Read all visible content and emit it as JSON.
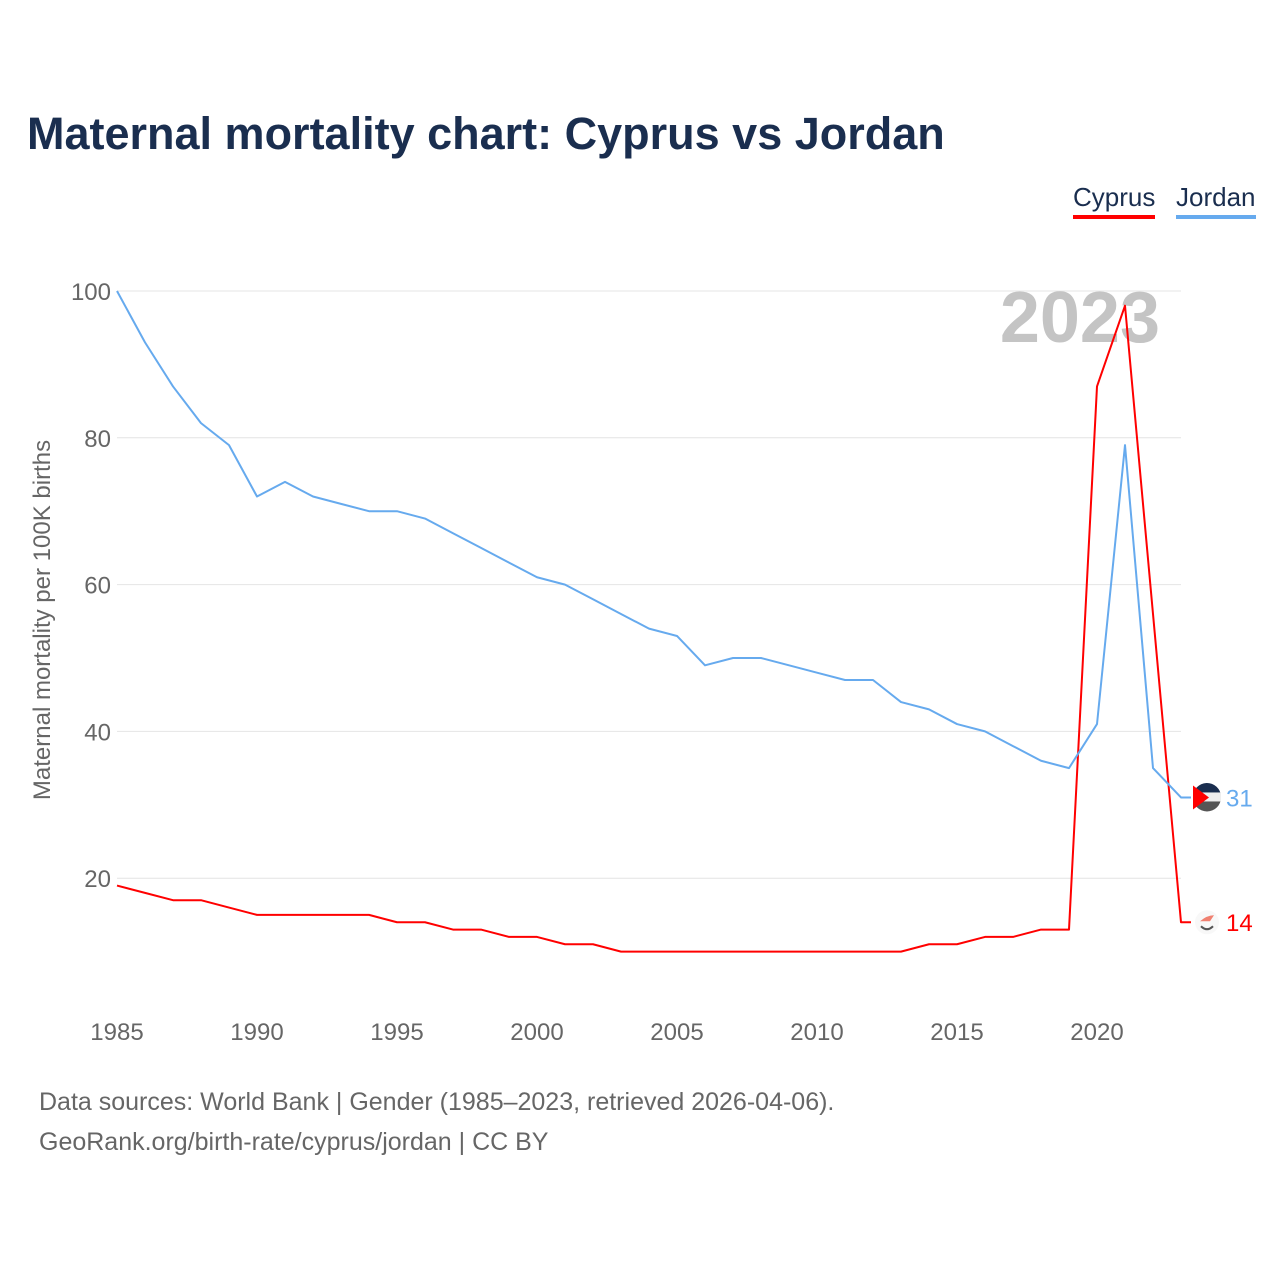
{
  "chart_data": {
    "type": "line",
    "title": "Maternal mortality chart: Cyprus vs Jordan",
    "ylabel": "Maternal mortality per 100K births",
    "xlabel": "",
    "ylim": [
      0,
      100
    ],
    "xlim": [
      1985,
      2023
    ],
    "yticks": [
      20,
      40,
      60,
      80,
      100
    ],
    "xticks": [
      1985,
      1990,
      1995,
      2000,
      2005,
      2010,
      2015,
      2020
    ],
    "grid": true,
    "legend_position": "top-right",
    "year_label": "2023",
    "x": [
      1985,
      1986,
      1987,
      1988,
      1989,
      1990,
      1991,
      1992,
      1993,
      1994,
      1995,
      1996,
      1997,
      1998,
      1999,
      2000,
      2001,
      2002,
      2003,
      2004,
      2005,
      2006,
      2007,
      2008,
      2009,
      2010,
      2011,
      2012,
      2013,
      2014,
      2015,
      2016,
      2017,
      2018,
      2019,
      2020,
      2021,
      2022,
      2023
    ],
    "series": [
      {
        "name": "Cyprus",
        "color": "#ff0000",
        "end_label": "14",
        "values": [
          19,
          18,
          17,
          17,
          16,
          15,
          15,
          15,
          15,
          15,
          14,
          14,
          13,
          13,
          12,
          12,
          11,
          11,
          10,
          10,
          10,
          10,
          10,
          10,
          10,
          10,
          10,
          10,
          10,
          11,
          11,
          12,
          12,
          13,
          13,
          87,
          98,
          56,
          14
        ]
      },
      {
        "name": "Jordan",
        "color": "#66aaee",
        "end_label": "31",
        "values": [
          100,
          93,
          87,
          82,
          79,
          72,
          74,
          72,
          71,
          70,
          70,
          69,
          67,
          65,
          63,
          61,
          60,
          58,
          56,
          54,
          53,
          49,
          50,
          50,
          49,
          48,
          47,
          47,
          44,
          43,
          41,
          40,
          38,
          36,
          35,
          41,
          79,
          35,
          31
        ]
      }
    ]
  },
  "footer": {
    "line1": "Data sources: World Bank | Gender (1985–2023, retrieved 2026-04-06).",
    "line2": "GeoRank.org/birth-rate/cyprus/jordan | CC BY"
  }
}
